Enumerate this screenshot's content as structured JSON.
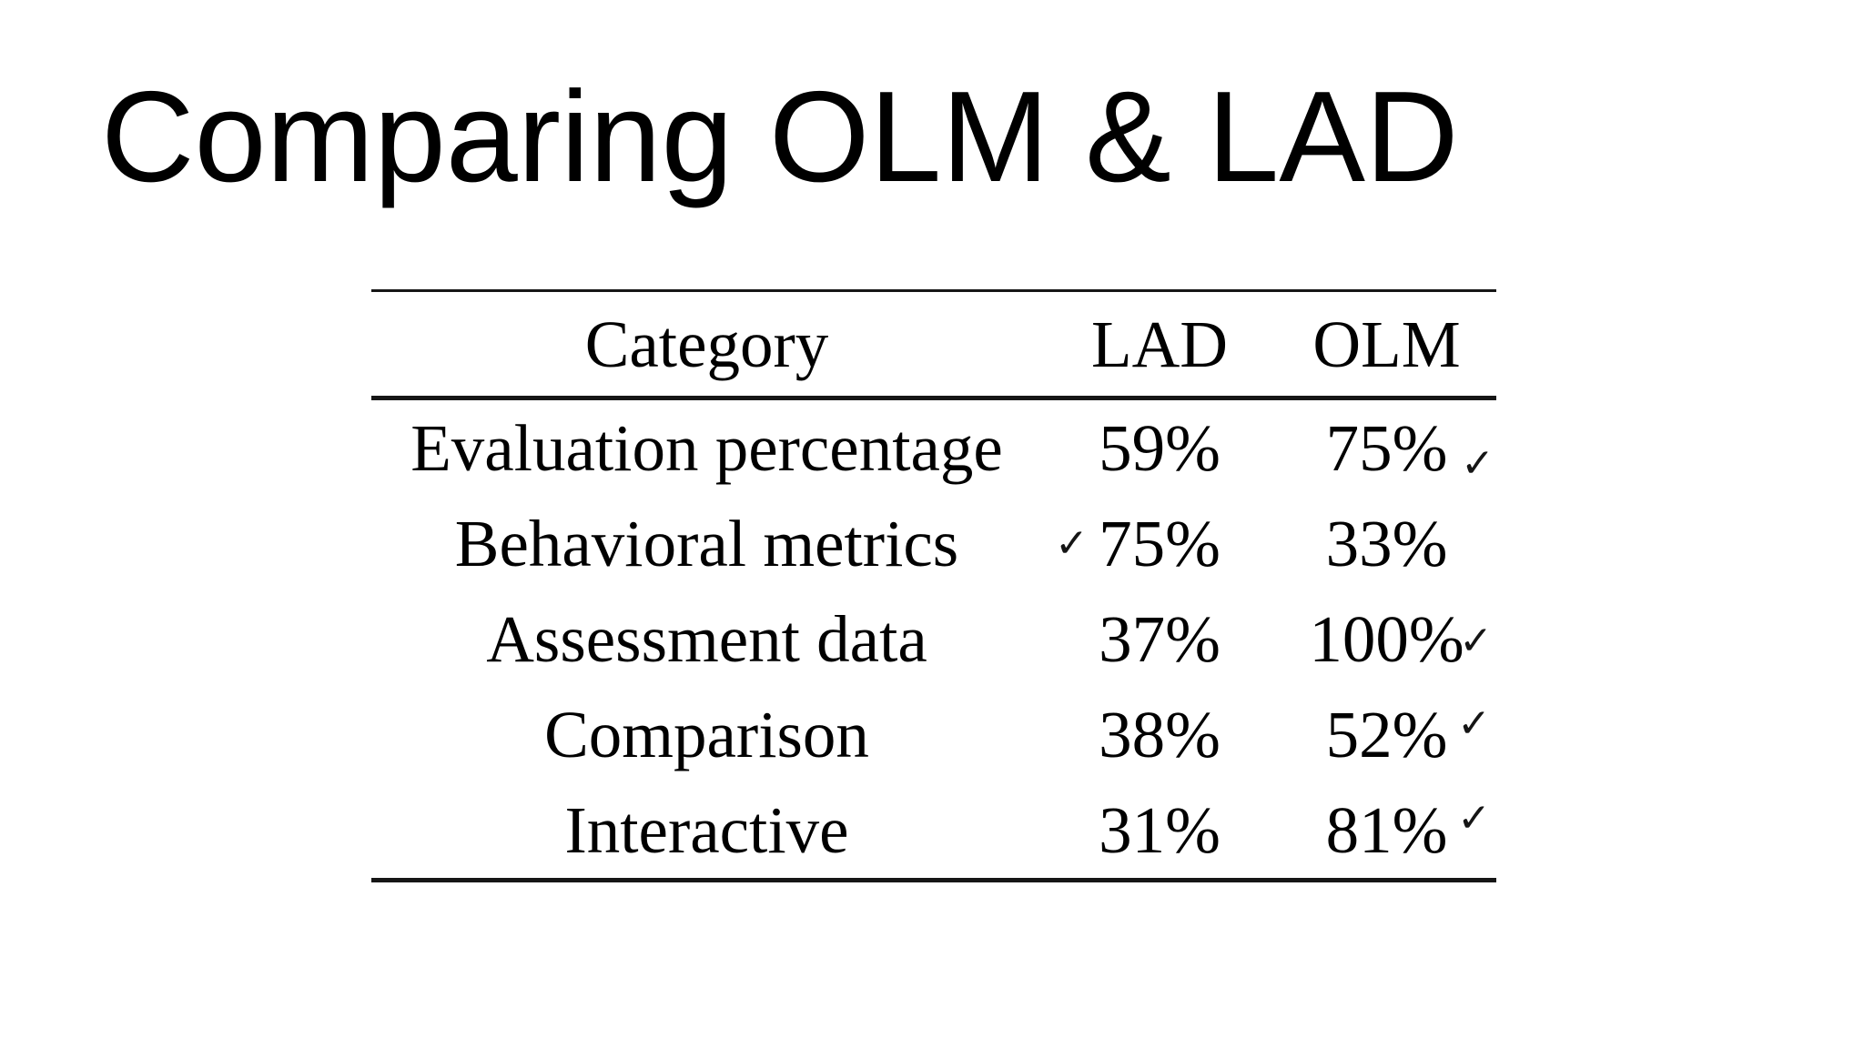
{
  "slide": {
    "title": "Comparing OLM & LAD"
  },
  "table": {
    "columns": [
      "Category",
      "LAD",
      "OLM"
    ],
    "check_glyph": "✓",
    "rows": [
      {
        "category": "Evaluation percentage",
        "lad": "59%",
        "olm": "75%",
        "checked": "OLM"
      },
      {
        "category": "Behavioral metrics",
        "lad": "75%",
        "olm": "33%",
        "checked": "LAD"
      },
      {
        "category": "Assessment data",
        "lad": "37%",
        "olm": "100%",
        "checked": "OLM"
      },
      {
        "category": "Comparison",
        "lad": "38%",
        "olm": "52%",
        "checked": "OLM"
      },
      {
        "category": "Interactive",
        "lad": "31%",
        "olm": "81%",
        "checked": "OLM"
      }
    ]
  },
  "chart_data": {
    "type": "table",
    "title": "Comparing OLM & LAD",
    "columns": [
      "Category",
      "LAD",
      "OLM"
    ],
    "rows": [
      [
        "Evaluation percentage",
        "59%",
        "75% ✓"
      ],
      [
        "Behavioral metrics",
        "✓ 75%",
        "33%"
      ],
      [
        "Assessment data",
        "37%",
        "100% ✓"
      ],
      [
        "Comparison",
        "38%",
        "52% ✓"
      ],
      [
        "Interactive",
        "31%",
        "81% ✓"
      ]
    ]
  },
  "colors": {
    "background": "#ffffff",
    "text": "#000000",
    "rule": "#161616"
  }
}
